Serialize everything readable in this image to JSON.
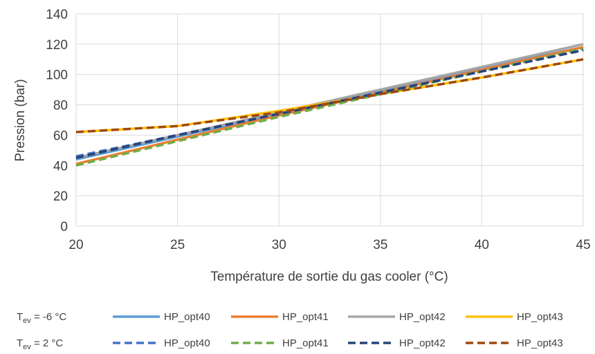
{
  "chart_data": {
    "type": "line",
    "xlabel": "Température de sortie du gas cooler (°C)",
    "ylabel": "Pression (bar)",
    "xlim": [
      20,
      45
    ],
    "ylim": [
      0,
      140
    ],
    "xticks": [
      "20",
      "25",
      "30",
      "35",
      "40",
      "45"
    ],
    "yticks": [
      "0",
      "20",
      "40",
      "60",
      "80",
      "100",
      "120",
      "140"
    ],
    "grid": true,
    "legend_placement": "bottom",
    "legend_groups": [
      {
        "label_main": "T",
        "label_sub": "ev",
        "label_rest": " = -6 °C",
        "style": "solid"
      },
      {
        "label_main": "T",
        "label_sub": "ev",
        "label_rest": " = 2 °C",
        "style": "dashed"
      }
    ],
    "series": [
      {
        "name": "HP_opt40",
        "group": 0,
        "dash": false,
        "color": "#5b9bd5",
        "x": [
          20,
          25,
          30,
          35,
          40,
          45
        ],
        "y": [
          44,
          59,
          74,
          89,
          104,
          118
        ]
      },
      {
        "name": "HP_opt41",
        "group": 0,
        "dash": false,
        "color": "#ed7d31",
        "x": [
          20,
          25,
          30,
          35,
          40,
          45
        ],
        "y": [
          41,
          57,
          73,
          88,
          103,
          118
        ]
      },
      {
        "name": "HP_opt42",
        "group": 0,
        "dash": false,
        "color": "#a5a5a5",
        "x": [
          20,
          25,
          30,
          35,
          40,
          45
        ],
        "y": [
          45,
          60,
          75,
          90,
          105,
          120
        ]
      },
      {
        "name": "HP_opt43",
        "group": 0,
        "dash": false,
        "color": "#ffc000",
        "x": [
          20,
          25,
          30,
          35,
          40,
          45
        ],
        "y": [
          62,
          66,
          76,
          87,
          98,
          110
        ]
      },
      {
        "name": "HP_opt40",
        "group": 1,
        "dash": true,
        "color": "#4472c4",
        "x": [
          20,
          25,
          30,
          35,
          40,
          45
        ],
        "y": [
          46,
          60,
          74,
          88,
          102,
          116
        ]
      },
      {
        "name": "HP_opt41",
        "group": 1,
        "dash": true,
        "color": "#70ad47",
        "x": [
          20,
          25,
          30,
          35,
          40,
          45
        ],
        "y": [
          40,
          56,
          72,
          87,
          102,
          117
        ]
      },
      {
        "name": "HP_opt42",
        "group": 1,
        "dash": true,
        "color": "#264478",
        "x": [
          20,
          25,
          30,
          35,
          40,
          45
        ],
        "y": [
          45,
          60,
          74,
          88,
          102,
          116
        ]
      },
      {
        "name": "HP_opt43",
        "group": 1,
        "dash": true,
        "color": "#9e480e",
        "x": [
          20,
          25,
          30,
          35,
          40,
          45
        ],
        "y": [
          62,
          66,
          75,
          87,
          98,
          110
        ]
      }
    ]
  }
}
